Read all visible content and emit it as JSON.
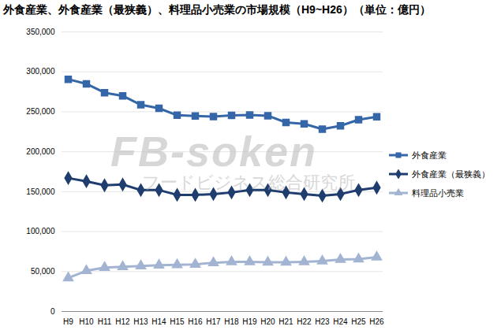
{
  "chart_data": {
    "type": "line",
    "title": "外食産業、外食産業（最狭義）、料理品小売業の市場規模（H9~H26）（単位：億円）",
    "categories": [
      "H9",
      "H10",
      "H11",
      "H12",
      "H13",
      "H14",
      "H15",
      "H16",
      "H17",
      "H18",
      "H19",
      "H20",
      "H21",
      "H22",
      "H23",
      "H24",
      "H25",
      "H26"
    ],
    "series": [
      {
        "name": "外食産業",
        "color": "#3566a8",
        "marker": "square",
        "line_style": "solid",
        "values": [
          290702,
          284961,
          273880,
          269925,
          258760,
          254387,
          245684,
          244825,
          243903,
          245523,
          245908,
          245068,
          236599,
          234887,
          228282,
          232386,
          240099,
          243686
        ]
      },
      {
        "name": "外食産業（最狭義）",
        "color": "#1f3d6e",
        "marker": "diamond",
        "line_style": "solid",
        "values": [
          167000,
          163000,
          158000,
          159000,
          152000,
          152000,
          146000,
          146000,
          147000,
          149000,
          152000,
          152000,
          149000,
          147000,
          145000,
          147000,
          152000,
          155000
        ]
      },
      {
        "name": "料理品小売業",
        "color": "#a3b4d2",
        "marker": "triangle",
        "line_style": "solid",
        "values": [
          42000,
          51000,
          55000,
          56000,
          57000,
          58000,
          58500,
          59000,
          61000,
          62000,
          62000,
          61500,
          61500,
          62000,
          63000,
          65000,
          65500,
          68000
        ]
      }
    ],
    "ylim": [
      0,
      350000
    ],
    "yticks": [
      0,
      {
        "value": 50000,
        "label": "50,000"
      },
      {
        "value": 100000,
        "label": "100,000"
      },
      {
        "value": 150000,
        "label": "150,000"
      },
      {
        "value": 200000,
        "label": "200,000"
      },
      {
        "value": 250000,
        "label": "250,000"
      },
      {
        "value": 300000,
        "label": "300,000"
      },
      {
        "value": 350000,
        "label": "350,000"
      }
    ],
    "grid": true,
    "legend": "right",
    "annotations": [
      "FB-soken",
      "フードビジネス総合研究所"
    ]
  }
}
